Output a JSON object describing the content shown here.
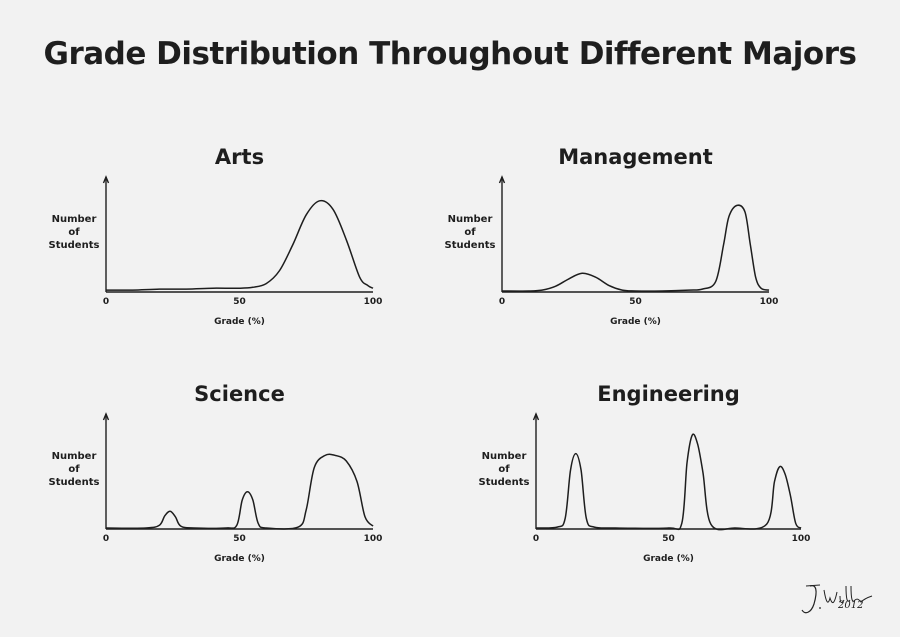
{
  "title": "Grade Distribution Throughout Different Majors",
  "signature_year": "2012",
  "signature_text": "J. William",
  "chart_data": [
    {
      "type": "line",
      "title": "Arts",
      "ylabel": [
        "Number",
        "of",
        "Students"
      ],
      "xlabel": "Grade (%)",
      "xticks": [
        "0",
        "50",
        "100"
      ],
      "xlim": [
        0,
        100
      ],
      "ylim": [
        0,
        100
      ],
      "x": [
        0,
        10,
        20,
        30,
        40,
        50,
        55,
        60,
        65,
        70,
        75,
        80,
        85,
        90,
        95,
        98,
        100
      ],
      "y": [
        1,
        1,
        2,
        2,
        3,
        3,
        4,
        8,
        22,
        50,
        82,
        97,
        88,
        55,
        15,
        6,
        3
      ]
    },
    {
      "type": "line",
      "title": "Management",
      "ylabel": [
        "Number",
        "of",
        "Students"
      ],
      "xlabel": "Grade (%)",
      "xticks": [
        "0",
        "50",
        "100"
      ],
      "xlim": [
        0,
        100
      ],
      "ylim": [
        0,
        100
      ],
      "x": [
        0,
        10,
        15,
        20,
        25,
        30,
        35,
        40,
        45,
        50,
        60,
        70,
        75,
        80,
        83,
        85,
        88,
        91,
        93,
        95,
        97,
        100
      ],
      "y": [
        0,
        0,
        1,
        5,
        13,
        19,
        15,
        6,
        1,
        0,
        0,
        1,
        2,
        10,
        50,
        80,
        92,
        85,
        50,
        15,
        3,
        1
      ]
    },
    {
      "type": "line",
      "title": "Science",
      "ylabel": [
        "Number",
        "of",
        "Students"
      ],
      "xlabel": "Grade (%)",
      "xticks": [
        "0",
        "50",
        "100"
      ],
      "xlim": [
        0,
        100
      ],
      "ylim": [
        0,
        100
      ],
      "x": [
        0,
        15,
        20,
        22,
        24,
        26,
        28,
        33,
        45,
        49,
        51,
        53,
        55,
        57,
        60,
        72,
        75,
        78,
        82,
        86,
        90,
        94,
        97,
        100
      ],
      "y": [
        0,
        0,
        3,
        13,
        18,
        12,
        2,
        0,
        0,
        3,
        30,
        39,
        30,
        5,
        0,
        1,
        20,
        65,
        78,
        78,
        72,
        50,
        12,
        2
      ]
    },
    {
      "type": "line",
      "title": "Engineering",
      "ylabel": [
        "Number",
        "of",
        "Students"
      ],
      "xlabel": "Grade (%)",
      "xticks": [
        "0",
        "50",
        "100"
      ],
      "xlim": [
        0,
        100
      ],
      "ylim": [
        0,
        100
      ],
      "x": [
        0,
        8,
        11,
        13,
        15,
        17,
        19,
        22,
        30,
        50,
        55,
        57,
        59,
        61,
        63,
        66,
        75,
        87,
        90,
        92,
        94,
        96,
        98,
        100
      ],
      "y": [
        0,
        1,
        10,
        62,
        80,
        62,
        10,
        1,
        0,
        0,
        5,
        70,
        100,
        90,
        60,
        4,
        0,
        4,
        50,
        66,
        58,
        35,
        5,
        0
      ]
    }
  ]
}
